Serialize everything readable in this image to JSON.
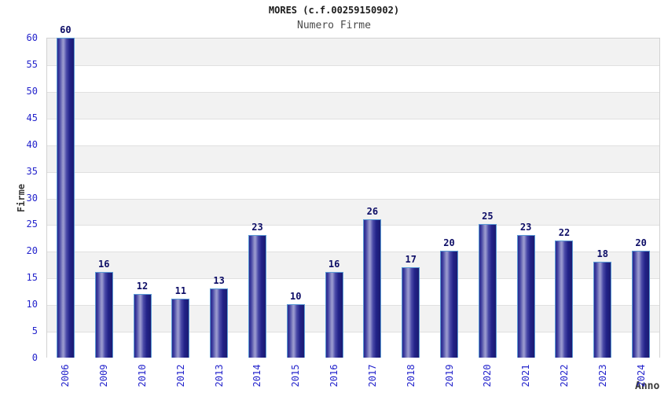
{
  "chart_data": {
    "type": "bar",
    "title": "MORES (c.f.00259150902)",
    "subtitle": "Numero Firme",
    "xlabel": "Anno",
    "ylabel": "Firme",
    "categories": [
      "2006",
      "2009",
      "2010",
      "2012",
      "2013",
      "2014",
      "2015",
      "2016",
      "2017",
      "2018",
      "2019",
      "2020",
      "2021",
      "2022",
      "2023",
      "2024"
    ],
    "values": [
      60,
      16,
      12,
      11,
      13,
      23,
      10,
      16,
      26,
      17,
      20,
      25,
      23,
      22,
      18,
      20
    ],
    "ylim": [
      0,
      60
    ],
    "ytick_step": 5,
    "grid": "horizontal-bands-alternating",
    "legend": "none",
    "colors": {
      "tick_label": "#2424cc",
      "value_label": "#0d0d66",
      "axis_title": "#3a3a3a",
      "title": "#1a1a1a",
      "subtitle": "#4a4a4a",
      "bar_edge": "#5b9bd5",
      "bar_dark": "#22228a",
      "bar_highlight": "#9a9ad0",
      "band_gray": "#f2f2f2",
      "band_white": "#ffffff",
      "grid_line": "#e0e0e0",
      "plot_border": "#d2d2d2",
      "background": "#ffffff"
    }
  }
}
